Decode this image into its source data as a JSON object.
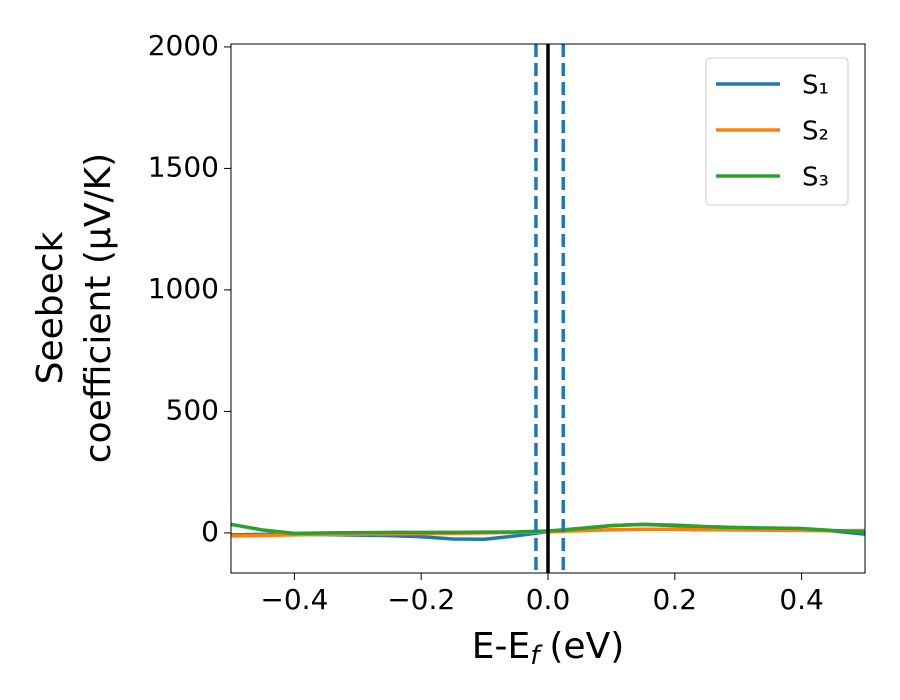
{
  "chart_data": {
    "type": "line",
    "xlabel": {
      "main": "E-E",
      "sub": "f",
      "unit": "(eV)"
    },
    "ylabel": [
      "Seebeck",
      "coefficient  (μV/K)"
    ],
    "x": [
      -0.5,
      -0.45,
      -0.4,
      -0.35,
      -0.3,
      -0.25,
      -0.2,
      -0.15,
      -0.1,
      -0.05,
      0,
      0.05,
      0.1,
      0.15,
      0.2,
      0.25,
      0.3,
      0.35,
      0.4,
      0.45,
      0.5
    ],
    "series": [
      {
        "name": "S₁",
        "color": "#1f77b4",
        "values": [
          -8,
          -6,
          -5,
          -7,
          -9,
          -11,
          -16,
          -25,
          -26,
          -12,
          5,
          18,
          30,
          35,
          30,
          24,
          20,
          18,
          15,
          8,
          -5
        ]
      },
      {
        "name": "S₂",
        "color": "#ff7f0e",
        "values": [
          -12,
          -10,
          -8,
          -6,
          -5,
          -4,
          -3,
          -2,
          0,
          2,
          5,
          9,
          13,
          15,
          15,
          13,
          12,
          11,
          10,
          9,
          10
        ]
      },
      {
        "name": "S₃",
        "color": "#2ca02c",
        "values": [
          35,
          12,
          -2,
          0,
          1,
          2,
          2,
          2,
          3,
          4,
          8,
          18,
          30,
          35,
          32,
          26,
          22,
          20,
          18,
          10,
          5
        ]
      }
    ],
    "vlines": [
      {
        "x": -0.019,
        "color": "#1f77b4",
        "style": "dashed"
      },
      {
        "x": 0.024,
        "color": "#1f77b4",
        "style": "dashed"
      },
      {
        "x": 0,
        "color": "#000000",
        "style": "solid"
      }
    ],
    "xlim": [
      -0.5,
      0.5
    ],
    "xticks": [
      {
        "value": -0.4,
        "label": "−0.4"
      },
      {
        "value": -0.2,
        "label": "−0.2"
      },
      {
        "value": 0,
        "label": "0.0"
      },
      0.2,
      0.4
    ],
    "ylim": [
      -165,
      2012
    ],
    "yticks": [
      0,
      500,
      1000,
      1500,
      2000
    ],
    "legend": "upper right"
  }
}
